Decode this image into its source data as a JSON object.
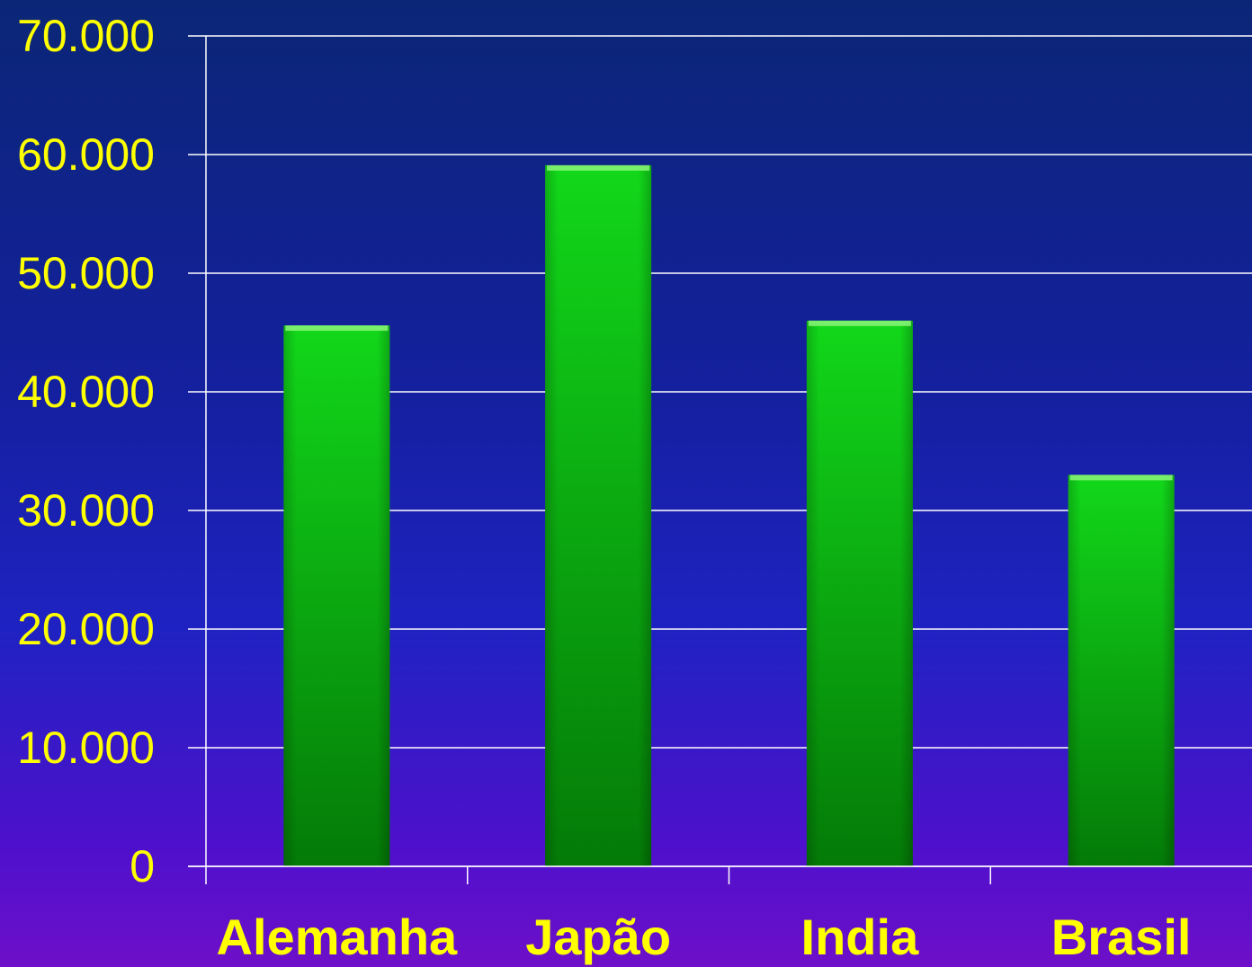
{
  "chart_data": {
    "type": "bar",
    "title": "",
    "xlabel": "",
    "ylabel": "",
    "categories": [
      "Alemanha",
      "Japão",
      "India",
      "Brasil"
    ],
    "values": [
      45600,
      59100,
      46000,
      33000
    ],
    "ylim": [
      0,
      70000
    ],
    "y_ticks": [
      0,
      10000,
      20000,
      30000,
      40000,
      50000,
      60000,
      70000
    ],
    "y_tick_labels": [
      "0",
      "10.000",
      "20.000",
      "30.000",
      "40.000",
      "50.000",
      "60.000",
      "70.000"
    ],
    "grid": true,
    "legend": "none",
    "colors": {
      "bar_top": "#12d81a",
      "bar_bottom": "#047a07",
      "bar_cap": "#8cf57a",
      "label": "#ffff00",
      "grid": "#ffffff",
      "background_top": "#0b2676",
      "background_bottom": "#6e0fc9"
    }
  }
}
